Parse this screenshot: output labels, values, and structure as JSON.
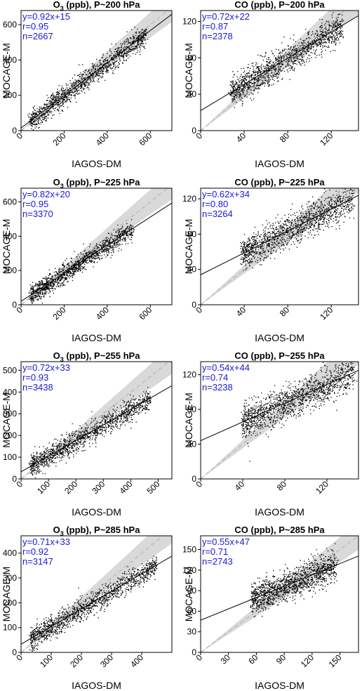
{
  "figure": {
    "panels": [
      {
        "title": "O3 (ppb), P~200 hPa",
        "title_main": "O",
        "title_sub": "3",
        "title_rest": " (ppb), P~200 ",
        "title_bold": "hPa",
        "xlabel": "IAGOS-DM",
        "ylabel": "MOCAGE-M",
        "stats": [
          "y=0.92x+15",
          "r=0.95",
          "n=2667"
        ]
      },
      {
        "title": "CO (ppb), P~200 hPa",
        "title_main": "CO (ppb), P~200 ",
        "title_sub": "",
        "title_rest": "",
        "title_bold": "hPa",
        "xlabel": "IAGOS-DM",
        "ylabel": "MOCAGE-M",
        "stats": [
          "y=0.72x+22",
          "r=0.87",
          "n=2378"
        ]
      },
      {
        "title": "O3 (ppb), P~225 hPa",
        "title_main": "O",
        "title_sub": "3",
        "title_rest": " (ppb), P~225 ",
        "title_bold": "hPa",
        "xlabel": "IAGOS-DM",
        "ylabel": "MOCAGE-M",
        "stats": [
          "y=0.82x+20",
          "r=0.95",
          "n=3370"
        ]
      },
      {
        "title": "CO (ppb), P~225 hPa",
        "title_main": "CO (ppb), P~225 ",
        "title_sub": "",
        "title_rest": "",
        "title_bold": "hPa",
        "xlabel": "IAGOS-DM",
        "ylabel": "MOCAGE-M",
        "stats": [
          "y=0.62x+34",
          "r=0.80",
          "n=3264"
        ]
      },
      {
        "title": "O3 (ppb), P~255 hPa",
        "title_main": "O",
        "title_sub": "3",
        "title_rest": " (ppb), P~255 ",
        "title_bold": "hPa",
        "xlabel": "IAGOS-DM",
        "ylabel": "MOCAGE-M",
        "stats": [
          "y=0.72x+33",
          "r=0.93",
          "n=3438"
        ]
      },
      {
        "title": "CO (ppb), P~255 hPa",
        "title_main": "CO (ppb), P~255 ",
        "title_sub": "",
        "title_rest": "",
        "title_bold": "hPa",
        "xlabel": "IAGOS-DM",
        "ylabel": "MOCAGE-M",
        "stats": [
          "y=0.54x+44",
          "r=0.74",
          "n=3238"
        ]
      },
      {
        "title": "O3 (ppb), P~285 hPa",
        "title_main": "O",
        "title_sub": "3",
        "title_rest": " (ppb), P~285 ",
        "title_bold": "hPa",
        "xlabel": "IAGOS-DM",
        "ylabel": "MOCAGE-M",
        "stats": [
          "y=0.71x+33",
          "r=0.92",
          "n=3147"
        ]
      },
      {
        "title": "CO (ppb), P~285 hPa",
        "title_main": "CO (ppb), P~285 ",
        "title_sub": "",
        "title_rest": "",
        "title_bold": "hPa",
        "xlabel": "IAGOS-DM",
        "ylabel": "MOCAGE-M",
        "stats": [
          "y=0.55x+47",
          "r=0.71",
          "n=2743"
        ]
      }
    ]
  },
  "colors": {
    "stats_text": "#1a1ad6",
    "points": "#000000",
    "band": "#d9d9d9",
    "dashed": "#bfbfbf",
    "fit": "#000000"
  },
  "chart_data": [
    {
      "type": "scatter",
      "title": "O3 (ppb), P~200 hPa",
      "xlabel": "IAGOS-DM",
      "ylabel": "MOCAGE-M",
      "xlim": [
        0,
        700
      ],
      "ylim": [
        0,
        680
      ],
      "xticks": [
        0,
        200,
        400,
        600
      ],
      "yticks": [
        0,
        200,
        400,
        600
      ],
      "fit": {
        "slope": 0.92,
        "intercept": 15
      },
      "r": 0.95,
      "n": 2667,
      "spread": 30,
      "cluster_x": [
        40,
        580
      ],
      "grid": false
    },
    {
      "type": "scatter",
      "title": "CO (ppb), P~200 hPa",
      "xlabel": "IAGOS-DM",
      "ylabel": "MOCAGE-M",
      "xlim": [
        0,
        145
      ],
      "ylim": [
        0,
        132
      ],
      "xticks": [
        0,
        40,
        80,
        120
      ],
      "yticks": [
        0,
        40,
        80,
        120
      ],
      "fit": {
        "slope": 0.72,
        "intercept": 22
      },
      "r": 0.87,
      "n": 2378,
      "spread": 8,
      "cluster_x": [
        28,
        130
      ],
      "grid": false
    },
    {
      "type": "scatter",
      "title": "O3 (ppb), P~225 hPa",
      "xlabel": "IAGOS-DM",
      "ylabel": "MOCAGE-M",
      "xlim": [
        0,
        700
      ],
      "ylim": [
        0,
        680
      ],
      "xticks": [
        0,
        200,
        400,
        600
      ],
      "yticks": [
        0,
        200,
        400,
        600
      ],
      "fit": {
        "slope": 0.82,
        "intercept": 20
      },
      "r": 0.95,
      "n": 3370,
      "spread": 28,
      "cluster_x": [
        40,
        520
      ],
      "grid": false
    },
    {
      "type": "scatter",
      "title": "CO (ppb), P~225 hPa",
      "xlabel": "IAGOS-DM",
      "ylabel": "MOCAGE-M",
      "xlim": [
        0,
        145
      ],
      "ylim": [
        0,
        132
      ],
      "xticks": [
        0,
        40,
        80,
        120
      ],
      "yticks": [
        0,
        40,
        80,
        120
      ],
      "fit": {
        "slope": 0.62,
        "intercept": 34
      },
      "r": 0.8,
      "n": 3264,
      "spread": 9,
      "cluster_x": [
        38,
        140
      ],
      "grid": false
    },
    {
      "type": "scatter",
      "title": "O3 (ppb), P~255 hPa",
      "xlabel": "IAGOS-DM",
      "ylabel": "MOCAGE-M",
      "xlim": [
        0,
        550
      ],
      "ylim": [
        0,
        540
      ],
      "xticks": [
        0,
        100,
        200,
        300,
        400,
        500
      ],
      "yticks": [
        0,
        100,
        200,
        300,
        400,
        500
      ],
      "fit": {
        "slope": 0.72,
        "intercept": 33
      },
      "r": 0.93,
      "n": 3438,
      "spread": 25,
      "cluster_x": [
        35,
        470
      ],
      "grid": false
    },
    {
      "type": "scatter",
      "title": "CO (ppb), P~255 hPa",
      "xlabel": "IAGOS-DM",
      "ylabel": "MOCAGE-M",
      "xlim": [
        0,
        150
      ],
      "ylim": [
        0,
        135
      ],
      "xticks": [
        0,
        40,
        80,
        120
      ],
      "yticks": [
        0,
        40,
        80,
        120
      ],
      "fit": {
        "slope": 0.54,
        "intercept": 44
      },
      "r": 0.74,
      "n": 3238,
      "spread": 10,
      "cluster_x": [
        40,
        145
      ],
      "grid": false
    },
    {
      "type": "scatter",
      "title": "O3 (ppb), P~285 hPa",
      "xlabel": "IAGOS-DM",
      "ylabel": "MOCAGE-M",
      "xlim": [
        0,
        500
      ],
      "ylim": [
        0,
        470
      ],
      "xticks": [
        0,
        100,
        200,
        300,
        400
      ],
      "yticks": [
        0,
        100,
        200,
        300,
        400
      ],
      "fit": {
        "slope": 0.71,
        "intercept": 33
      },
      "r": 0.92,
      "n": 3147,
      "spread": 22,
      "cluster_x": [
        30,
        450
      ],
      "grid": false
    },
    {
      "type": "scatter",
      "title": "CO (ppb), P~285 hPa",
      "xlabel": "IAGOS-DM",
      "ylabel": "MOCAGE-M",
      "xlim": [
        0,
        170
      ],
      "ylim": [
        0,
        170
      ],
      "xticks": [
        0,
        30,
        60,
        90,
        120,
        150
      ],
      "yticks": [
        0,
        30,
        60,
        90,
        120,
        150
      ],
      "fit": {
        "slope": 0.55,
        "intercept": 47
      },
      "r": 0.71,
      "n": 2743,
      "spread": 11,
      "cluster_x": [
        55,
        145
      ],
      "grid": false
    }
  ]
}
